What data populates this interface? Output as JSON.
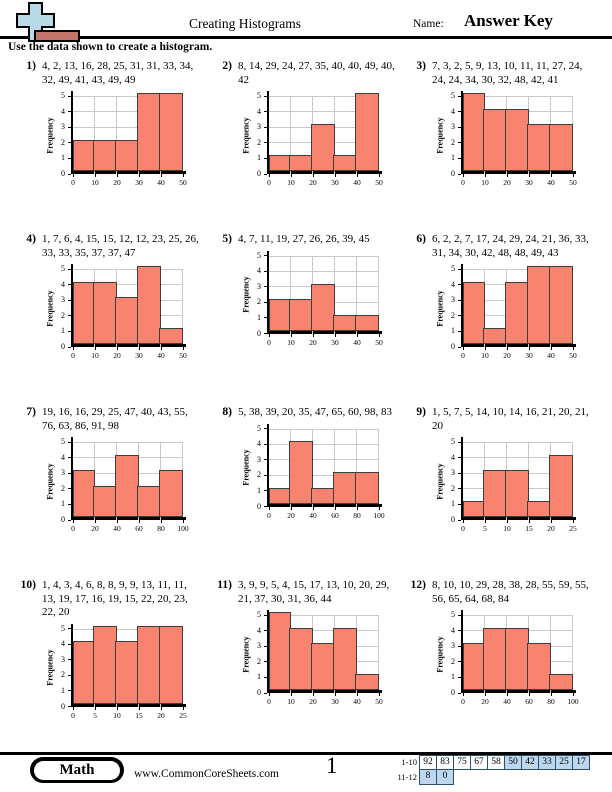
{
  "header": {
    "title": "Creating Histograms",
    "name_label": "Name:",
    "answer_key": "Answer Key",
    "instructions": "Use the data shown to create a histogram."
  },
  "colors": {
    "bar_fill": "#f8836f",
    "bar_border": "#3d3d3d",
    "answer_key_red": "#ff0000",
    "score_highlight": "#bdd7ee",
    "logo_blue": "#b8d9e6",
    "logo_red": "#c4756b"
  },
  "problems": [
    {
      "number": "1)",
      "data": "4, 2, 13, 16, 28, 25, 31, 31, 33, 34, 32, 49, 41, 43, 49, 49"
    },
    {
      "number": "2)",
      "data": "8, 14, 29, 24, 27, 35, 40, 40, 49, 40, 42"
    },
    {
      "number": "3)",
      "data": "7, 3, 2, 5, 9, 13, 10, 11, 11, 27, 24, 24, 24, 34, 30, 32, 48, 42, 41"
    },
    {
      "number": "4)",
      "data": "1, 7, 6, 4, 15, 15, 12, 12, 23, 25, 26, 33, 33, 35, 37, 37, 47"
    },
    {
      "number": "5)",
      "data": "4, 7, 11, 19, 27, 26, 26, 39, 45"
    },
    {
      "number": "6)",
      "data": "6, 2, 2, 7, 17, 24, 29, 24, 21, 36, 33, 31, 34, 30, 42, 48, 48, 49, 43"
    },
    {
      "number": "7)",
      "data": "19, 16, 16, 29, 25, 47, 40, 43, 55, 76, 63, 86, 91, 98"
    },
    {
      "number": "8)",
      "data": "5, 38, 39, 20, 35, 47, 65, 60, 98, 83"
    },
    {
      "number": "9)",
      "data": "1, 5, 7, 5, 14, 10, 14, 16, 21, 20, 21, 20"
    },
    {
      "number": "10)",
      "data": "1, 4, 3, 4, 6, 8, 8, 9, 9, 13, 11, 11, 13, 19, 17, 16, 19, 15, 22, 20, 23, 22, 20"
    },
    {
      "number": "11)",
      "data": "3, 9, 9, 5, 4, 15, 17, 13, 10, 20, 29, 21, 37, 30, 31, 36, 44"
    },
    {
      "number": "12)",
      "data": "8, 10, 10, 29, 28, 38, 28, 55, 59, 55, 56, 65, 64, 68, 84"
    }
  ],
  "chart_data": [
    {
      "type": "bar",
      "title": "Problem 1 histogram",
      "bins": [
        "0-10",
        "10-20",
        "20-30",
        "30-40",
        "40-50"
      ],
      "x_ticks": [
        "0",
        "10",
        "20",
        "30",
        "40",
        "50"
      ],
      "values": [
        2,
        2,
        2,
        5,
        5
      ],
      "ylabel": "Frequency",
      "y_ticks": [
        0,
        1,
        2,
        3,
        4,
        5
      ],
      "ylim": [
        0,
        5
      ],
      "grid": true
    },
    {
      "type": "bar",
      "title": "Problem 2 histogram",
      "bins": [
        "0-10",
        "10-20",
        "20-30",
        "30-40",
        "40-50"
      ],
      "x_ticks": [
        "0",
        "10",
        "20",
        "30",
        "40",
        "50"
      ],
      "values": [
        1,
        1,
        3,
        1,
        5
      ],
      "ylabel": "Frequency",
      "y_ticks": [
        0,
        1,
        2,
        3,
        4,
        5
      ],
      "ylim": [
        0,
        5
      ],
      "grid": true
    },
    {
      "type": "bar",
      "title": "Problem 3 histogram",
      "bins": [
        "0-10",
        "10-20",
        "20-30",
        "30-40",
        "40-50"
      ],
      "x_ticks": [
        "0",
        "10",
        "20",
        "30",
        "40",
        "50"
      ],
      "values": [
        5,
        4,
        4,
        3,
        3
      ],
      "ylabel": "Frequency",
      "y_ticks": [
        0,
        1,
        2,
        3,
        4,
        5
      ],
      "ylim": [
        0,
        5
      ],
      "grid": true
    },
    {
      "type": "bar",
      "title": "Problem 4 histogram",
      "bins": [
        "0-10",
        "10-20",
        "20-30",
        "30-40",
        "40-50"
      ],
      "x_ticks": [
        "0",
        "10",
        "20",
        "30",
        "40",
        "50"
      ],
      "values": [
        4,
        4,
        3,
        5,
        1
      ],
      "ylabel": "Frequency",
      "y_ticks": [
        0,
        1,
        2,
        3,
        4,
        5
      ],
      "ylim": [
        0,
        5
      ],
      "grid": true
    },
    {
      "type": "bar",
      "title": "Problem 5 histogram",
      "bins": [
        "0-10",
        "10-20",
        "20-30",
        "30-40",
        "40-50"
      ],
      "x_ticks": [
        "0",
        "10",
        "20",
        "30",
        "40",
        "50"
      ],
      "values": [
        2,
        2,
        3,
        1,
        1
      ],
      "ylabel": "Frequency",
      "y_ticks": [
        0,
        1,
        2,
        3,
        4,
        5
      ],
      "ylim": [
        0,
        5
      ],
      "grid": true
    },
    {
      "type": "bar",
      "title": "Problem 6 histogram",
      "bins": [
        "0-10",
        "10-20",
        "20-30",
        "30-40",
        "40-50"
      ],
      "x_ticks": [
        "0",
        "10",
        "20",
        "30",
        "40",
        "50"
      ],
      "values": [
        4,
        1,
        4,
        5,
        5
      ],
      "ylabel": "Frequency",
      "y_ticks": [
        0,
        1,
        2,
        3,
        4,
        5
      ],
      "ylim": [
        0,
        5
      ],
      "grid": true
    },
    {
      "type": "bar",
      "title": "Problem 7 histogram",
      "bins": [
        "0-20",
        "20-40",
        "40-60",
        "60-80",
        "80-100"
      ],
      "x_ticks": [
        "0",
        "20",
        "40",
        "60",
        "80",
        "100"
      ],
      "values": [
        3,
        2,
        4,
        2,
        3
      ],
      "ylabel": "Frequency",
      "y_ticks": [
        0,
        1,
        2,
        3,
        4,
        5
      ],
      "ylim": [
        0,
        5
      ],
      "grid": true
    },
    {
      "type": "bar",
      "title": "Problem 8 histogram",
      "bins": [
        "0-20",
        "20-40",
        "40-60",
        "60-80",
        "80-100"
      ],
      "x_ticks": [
        "0",
        "20",
        "40",
        "60",
        "80",
        "100"
      ],
      "values": [
        1,
        4,
        1,
        2,
        2
      ],
      "ylabel": "Frequency",
      "y_ticks": [
        0,
        1,
        2,
        3,
        4,
        5
      ],
      "ylim": [
        0,
        5
      ],
      "grid": true
    },
    {
      "type": "bar",
      "title": "Problem 9 histogram",
      "bins": [
        "0-5",
        "5-10",
        "10-15",
        "15-20",
        "20-25"
      ],
      "x_ticks": [
        "0",
        "5",
        "10",
        "15",
        "20",
        "25"
      ],
      "values": [
        1,
        3,
        3,
        1,
        4
      ],
      "ylabel": "Frequency",
      "y_ticks": [
        0,
        1,
        2,
        3,
        4,
        5
      ],
      "ylim": [
        0,
        5
      ],
      "grid": true
    },
    {
      "type": "bar",
      "title": "Problem 10 histogram",
      "bins": [
        "0-5",
        "5-10",
        "10-15",
        "15-20",
        "20-25"
      ],
      "x_ticks": [
        "0",
        "5",
        "10",
        "15",
        "20",
        "25"
      ],
      "values": [
        4,
        5,
        4,
        5,
        5
      ],
      "ylabel": "Frequency",
      "y_ticks": [
        0,
        1,
        2,
        3,
        4,
        5
      ],
      "ylim": [
        0,
        5
      ],
      "grid": true
    },
    {
      "type": "bar",
      "title": "Problem 11 histogram",
      "bins": [
        "0-10",
        "10-20",
        "20-30",
        "30-40",
        "40-50"
      ],
      "x_ticks": [
        "0",
        "10",
        "20",
        "30",
        "40",
        "50"
      ],
      "values": [
        5,
        4,
        3,
        4,
        1
      ],
      "ylabel": "Frequency",
      "y_ticks": [
        0,
        1,
        2,
        3,
        4,
        5
      ],
      "ylim": [
        0,
        5
      ],
      "grid": true
    },
    {
      "type": "bar",
      "title": "Problem 12 histogram",
      "bins": [
        "0-20",
        "20-40",
        "40-60",
        "60-80",
        "80-100"
      ],
      "x_ticks": [
        "0",
        "20",
        "40",
        "60",
        "80",
        "100"
      ],
      "values": [
        3,
        4,
        4,
        3,
        1
      ],
      "ylabel": "Frequency",
      "y_ticks": [
        0,
        1,
        2,
        3,
        4,
        5
      ],
      "ylim": [
        0,
        5
      ],
      "grid": true
    }
  ],
  "footer": {
    "subject": "Math",
    "website": "www.CommonCoreSheets.com",
    "page_number": "1",
    "score_table": [
      {
        "label": "1-10",
        "cells": [
          "92",
          "83",
          "75",
          "67",
          "58",
          "50",
          "42",
          "33",
          "25",
          "17"
        ],
        "highlight_from": 5
      },
      {
        "label": "11-12",
        "cells": [
          "8",
          "0"
        ],
        "highlight_from": 0
      }
    ]
  }
}
